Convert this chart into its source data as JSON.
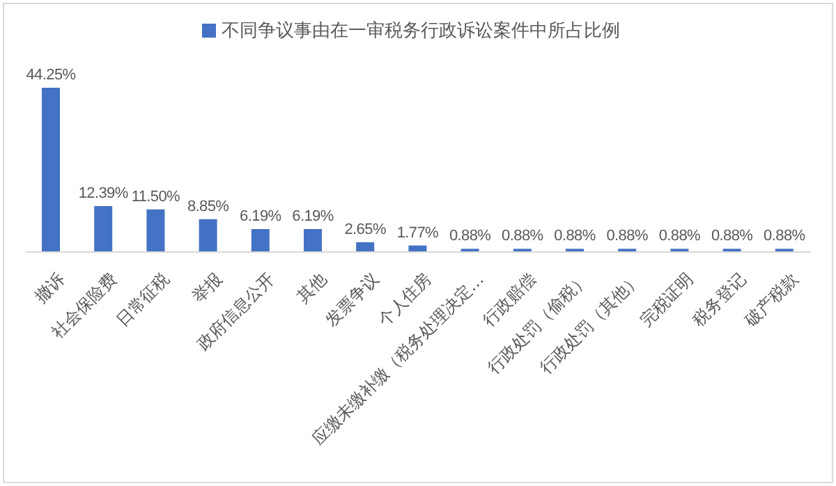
{
  "chart_data": {
    "type": "bar",
    "categories": [
      "撤诉",
      "社会保险费",
      "日常征税",
      "举报",
      "政府信息公开",
      "其他",
      "发票争议",
      "个人住房",
      "应缴未缴补缴（税务处理决定…",
      "行政赔偿",
      "行政处罚（偷税）",
      "行政处罚（其他）",
      "完税证明",
      "税务登记",
      "破产税款"
    ],
    "series": [
      {
        "name": "不同争议事由在一审税务行政诉讼案件中所占比例",
        "color": "#4472c4",
        "values": [
          44.25,
          12.39,
          11.5,
          8.85,
          6.19,
          6.19,
          2.65,
          1.77,
          0.88,
          0.88,
          0.88,
          0.88,
          0.88,
          0.88,
          0.88
        ],
        "value_labels": [
          "44.25%",
          "12.39%",
          "11.50%",
          "8.85%",
          "6.19%",
          "6.19%",
          "2.65%",
          "1.77%",
          "0.88%",
          "0.88%",
          "0.88%",
          "0.88%",
          "0.88%",
          "0.88%",
          "0.88%"
        ]
      }
    ],
    "legend": "top",
    "tick_labels": "x"
  }
}
